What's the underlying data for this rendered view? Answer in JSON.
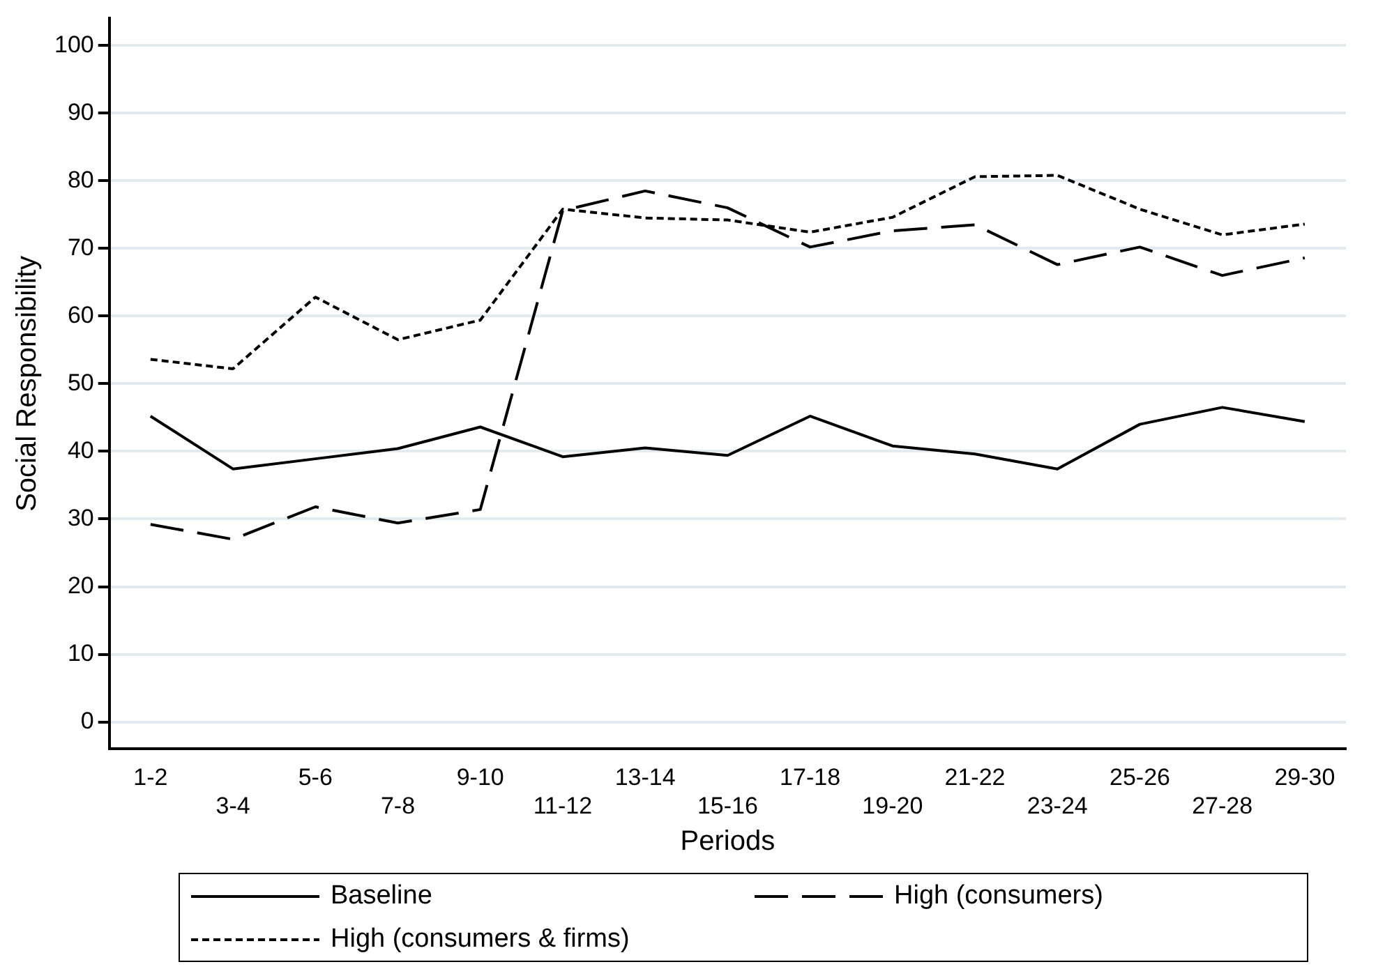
{
  "chart_data": {
    "type": "line",
    "xlabel": "Periods",
    "ylabel": "Social Responsibility",
    "categories": [
      "1-2",
      "3-4",
      "5-6",
      "7-8",
      "9-10",
      "11-12",
      "13-14",
      "15-16",
      "17-18",
      "19-20",
      "21-22",
      "23-24",
      "25-26",
      "27-28",
      "29-30"
    ],
    "series": [
      {
        "name": "Baseline",
        "color": "#000000",
        "line_style": "solid",
        "values": [
          45.2,
          37.4,
          38.9,
          40.4,
          43.6,
          39.2,
          40.5,
          39.4,
          45.2,
          40.8,
          39.6,
          37.4,
          44,
          46.5,
          44.4
        ]
      },
      {
        "name": "High (consumers)",
        "color": "#000000",
        "line_style": "dashed",
        "values": [
          29.2,
          27,
          31.8,
          29.4,
          31.4,
          75.6,
          78.5,
          76,
          70.2,
          72.6,
          73.5,
          67.6,
          70.2,
          66,
          68.6
        ]
      },
      {
        "name": "High (consumers & firms)",
        "color": "#000000",
        "line_style": "dotted",
        "values": [
          53.6,
          52.2,
          62.8,
          56.5,
          59.4,
          75.8,
          74.5,
          74.2,
          72.4,
          74.6,
          80.6,
          80.8,
          75.8,
          72,
          73.6
        ]
      }
    ],
    "ylim": [
      -4,
      104
    ],
    "yticks": [
      0,
      10,
      20,
      30,
      40,
      50,
      60,
      70,
      80,
      90,
      100
    ],
    "grid": "y",
    "legend": "bottom",
    "marker": "none"
  }
}
